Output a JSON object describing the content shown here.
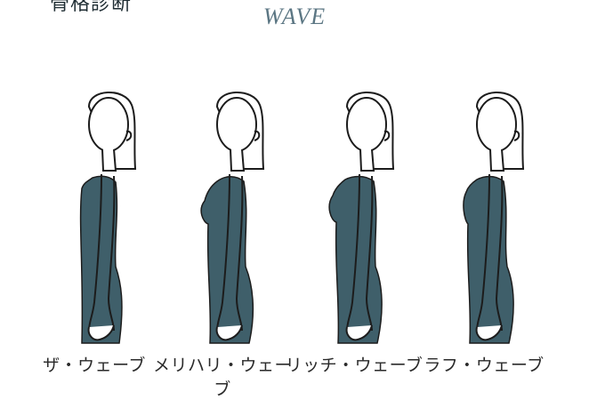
{
  "header": {
    "cut_text": "骨格診断",
    "title": "WAVE"
  },
  "colors": {
    "dress": "#3f5f6a",
    "line": "#1c1c1c",
    "title": "#5b7683"
  },
  "types": [
    {
      "label": "ザ・ウェーブ"
    },
    {
      "label": "メリハリ・ウェーブ"
    },
    {
      "label": "リッチ・ウェーブ"
    },
    {
      "label": "ラフ・ウェーブ"
    }
  ]
}
